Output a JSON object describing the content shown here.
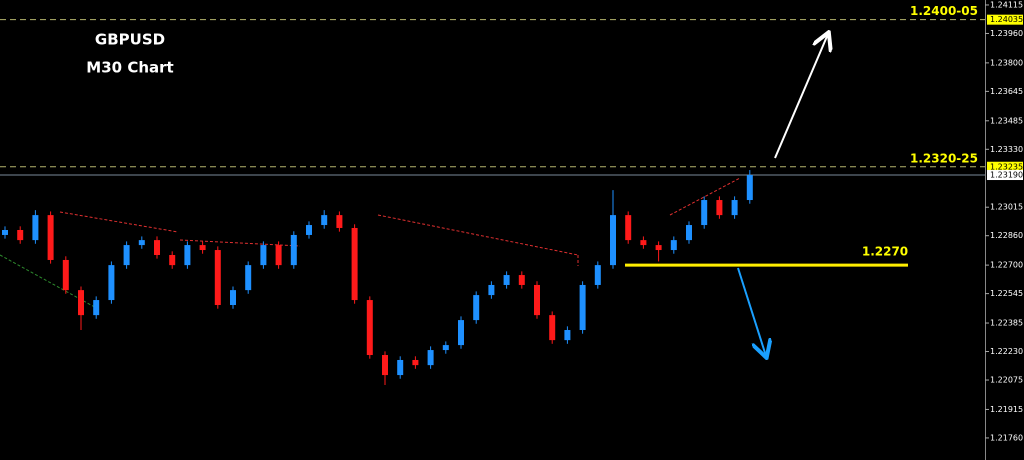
{
  "chart_data": {
    "type": "candlestick",
    "title": "GBPUSD",
    "subtitle": "M30 Chart",
    "up_color": "#1e90ff",
    "down_color": "#ff1a1a",
    "ylim": [
      1.2164,
      1.24142
    ],
    "yticks": [
      1.24115,
      {
        "value": 1.2396,
        "label": "1.23960"
      },
      {
        "value": 1.238,
        "label": "1.23800"
      },
      1.23645,
      1.23485,
      {
        "value": 1.2333,
        "label": "1.23330"
      },
      1.23015,
      {
        "value": 1.2286,
        "label": "1.22860"
      },
      {
        "value": 1.227,
        "label": "1.22700"
      },
      1.22545,
      1.22385,
      {
        "value": 1.2223,
        "label": "1.22230"
      },
      1.22075,
      1.21915,
      {
        "value": 1.2176,
        "label": "1.21760"
      }
    ],
    "open": [
      1.22864,
      1.22891,
      1.22836,
      1.22972,
      1.22728,
      1.22564,
      1.22428,
      1.2251,
      1.227,
      1.22809,
      1.22836,
      1.22755,
      1.227,
      1.22809,
      1.22782,
      1.22483,
      1.22564,
      1.227,
      1.22809,
      1.227,
      1.22864,
      1.22918,
      1.22972,
      1.22902,
      1.2251,
      1.22211,
      1.22102,
      1.22184,
      1.22156,
      1.22238,
      1.22265,
      1.22401,
      1.22537,
      1.22592,
      1.22646,
      1.22592,
      1.22428,
      1.22292,
      1.22347,
      1.22592,
      1.227,
      1.22972,
      1.22836,
      1.22809,
      1.22782,
      1.22836,
      1.22918,
      1.23054,
      1.22972,
      1.23054
    ],
    "high": [
      1.22911,
      1.22911,
      1.22999,
      1.22992,
      1.22748,
      1.22584,
      1.2253,
      1.2272,
      1.22829,
      1.22856,
      1.22856,
      1.22775,
      1.22829,
      1.22829,
      1.22802,
      1.22584,
      1.2272,
      1.22829,
      1.22829,
      1.22884,
      1.22938,
      1.22999,
      1.22992,
      1.22922,
      1.2253,
      1.22231,
      1.22204,
      1.22204,
      1.22258,
      1.22285,
      1.22421,
      1.22557,
      1.22612,
      1.22666,
      1.22666,
      1.22612,
      1.22448,
      1.22367,
      1.22612,
      1.2272,
      1.23108,
      1.22992,
      1.22856,
      1.22829,
      1.22856,
      1.22938,
      1.23074,
      1.23074,
      1.23074,
      1.23217
    ],
    "low": [
      1.22844,
      1.22816,
      1.22816,
      1.22708,
      1.22544,
      1.22347,
      1.22408,
      1.2249,
      1.2268,
      1.22789,
      1.22735,
      1.2268,
      1.2268,
      1.22762,
      1.22463,
      1.22463,
      1.22544,
      1.2268,
      1.2268,
      1.2268,
      1.22844,
      1.22898,
      1.22882,
      1.2249,
      1.22191,
      1.22048,
      1.22082,
      1.22136,
      1.22136,
      1.22218,
      1.22245,
      1.22381,
      1.22517,
      1.22572,
      1.22572,
      1.22408,
      1.22272,
      1.22272,
      1.22327,
      1.22572,
      1.2268,
      1.22816,
      1.22789,
      1.2272,
      1.22762,
      1.22816,
      1.22898,
      1.22952,
      1.22952,
      1.23034
    ],
    "close": [
      1.22891,
      1.22836,
      1.22972,
      1.22728,
      1.22564,
      1.22428,
      1.2251,
      1.227,
      1.22809,
      1.22836,
      1.22755,
      1.227,
      1.22809,
      1.22782,
      1.22483,
      1.22564,
      1.227,
      1.22809,
      1.227,
      1.22864,
      1.22918,
      1.22972,
      1.22902,
      1.2251,
      1.22211,
      1.22102,
      1.22184,
      1.22156,
      1.22238,
      1.22265,
      1.22401,
      1.22537,
      1.22592,
      1.22646,
      1.22592,
      1.22428,
      1.22292,
      1.22347,
      1.22592,
      1.227,
      1.22972,
      1.22836,
      1.22809,
      1.22782,
      1.22836,
      1.22918,
      1.23054,
      1.22972,
      1.23054,
      1.2319
    ],
    "levels": [
      {
        "price": 1.24035,
        "text": "1.2400-05",
        "style": "dashed",
        "color": "#b4b46e",
        "tag_color": "#ffff00"
      },
      {
        "price": 1.23235,
        "text": "1.2320-25",
        "style": "dashed",
        "color": "#b4b46e",
        "tag_color": "#ffff00"
      },
      {
        "price": 1.2319,
        "tag": "1.23190",
        "style": "solid",
        "color": "#7a8a9a",
        "tag_color": "#ffffff"
      },
      {
        "price": 1.227,
        "text": "1.2270",
        "style": "thick",
        "color": "#ffee00"
      }
    ]
  }
}
